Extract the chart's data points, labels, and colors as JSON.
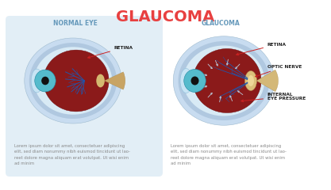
{
  "title": "GLAUCOMA",
  "title_color": "#E84040",
  "title_fontsize": 14,
  "bg_color": "#FFFFFF",
  "panel1_bg": "#E2EEF6",
  "panel1_label": "NORMAL EYE",
  "panel2_label": "GLAUCOMA",
  "label_color": "#6699BB",
  "label_fontsize": 5.5,
  "annotation_color": "#CC2222",
  "annotation_fontsize": 4.2,
  "lorem_text": "Lorem ipsum dolor sit amet, consectetuer adipiscing\nelit, sed diam nonummy nibh euismod tincidunt ut lao-\nreet dolore magna aliquam erat volutpat. Ut wisi enim\nad minim",
  "lorem_fontsize": 3.8,
  "lorem_color": "#888888",
  "eye_outer_color": "#B0C8E0",
  "eye_outer2_color": "#C8DCF0",
  "eye_sclera_color": "#D8EAF5",
  "eye_retina_color": "#8B1A1A",
  "eye_retina_dark": "#6B0808",
  "eye_iris_color": "#55BBCC",
  "eye_pupil_color": "#111111",
  "eye_nerve_color": "#C8A464",
  "eye_vessel_color": "#2255AA",
  "eye_optic_nerve_glaucoma": "#D4B878",
  "pressure_arrow_color": "#AABBCC",
  "annot_text_color": "#222222"
}
